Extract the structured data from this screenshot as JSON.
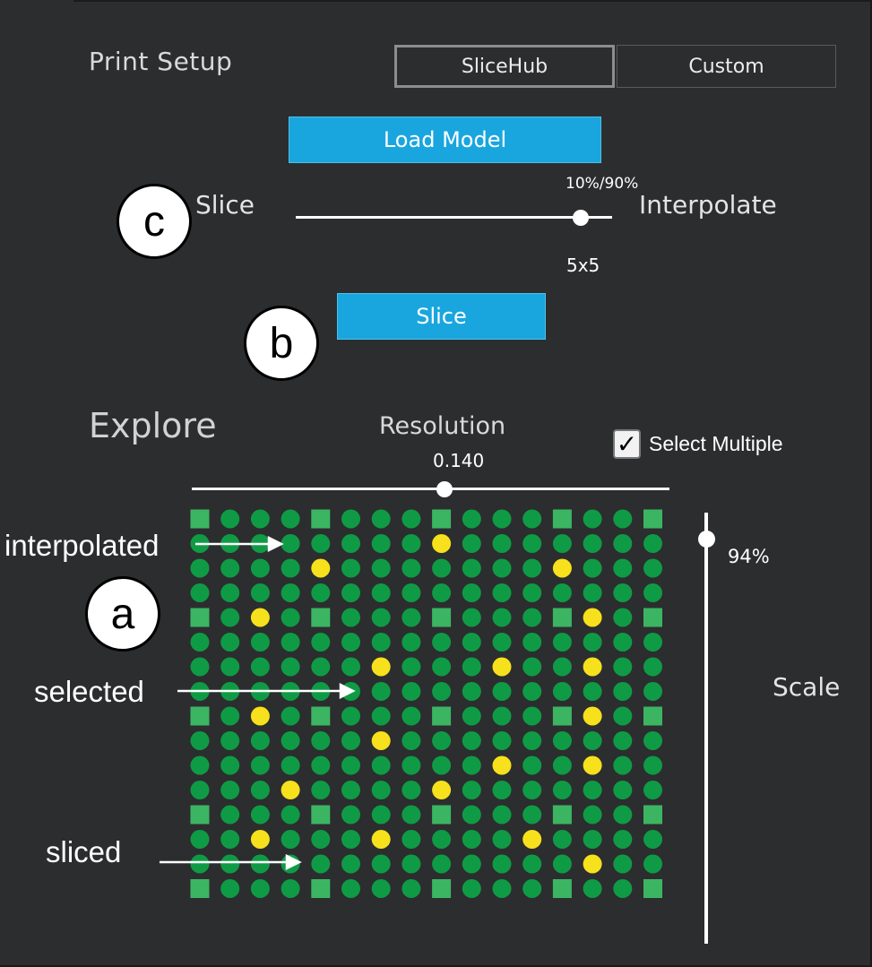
{
  "print_setup": {
    "title": "Print Setup",
    "tabs": [
      {
        "label": "SliceHub",
        "selected": true
      },
      {
        "label": "Custom",
        "selected": false
      }
    ],
    "load_model_label": "Load Model",
    "slice_button_label": "Slice",
    "mode_slider": {
      "left_label": "Slice",
      "right_label": "Interpolate",
      "value_label": "10%/90%",
      "grid_label": "5x5",
      "value_fraction": 0.9
    }
  },
  "explore": {
    "title": "Explore",
    "resolution": {
      "label": "Resolution",
      "value_text": "0.140",
      "value_fraction": 0.53
    },
    "select_multiple": {
      "label": "Select Multiple",
      "checked": true,
      "check_glyph": "✓"
    },
    "scale": {
      "label": "Scale",
      "value_text": "94%",
      "value_fraction": 0.94
    },
    "grid": {
      "rows": 16,
      "cols": 16,
      "colors": {
        "sliced": "#3cb563",
        "interpolated": "#0f9b45",
        "selected": "#f6e11c"
      },
      "sliced_rows": [
        0,
        4,
        8,
        12,
        15
      ],
      "sliced_cols": [
        0,
        4,
        8,
        12,
        15
      ],
      "selected_cells": [
        [
          1,
          8
        ],
        [
          2,
          4
        ],
        [
          2,
          12
        ],
        [
          4,
          2
        ],
        [
          4,
          13
        ],
        [
          6,
          6
        ],
        [
          6,
          10
        ],
        [
          6,
          13
        ],
        [
          8,
          2
        ],
        [
          8,
          13
        ],
        [
          9,
          6
        ],
        [
          10,
          10
        ],
        [
          10,
          13
        ],
        [
          11,
          3
        ],
        [
          11,
          8
        ],
        [
          13,
          2
        ],
        [
          13,
          6
        ],
        [
          13,
          11
        ],
        [
          14,
          13
        ]
      ]
    }
  },
  "annotations": {
    "callouts": [
      "a",
      "b",
      "c"
    ],
    "interpolated_label": "interpolated",
    "selected_label": "selected",
    "sliced_label": "sliced"
  },
  "colors": {
    "panel": "#2c2d2f",
    "accent_button": "#19a6df",
    "text": "#e4e4e4"
  }
}
